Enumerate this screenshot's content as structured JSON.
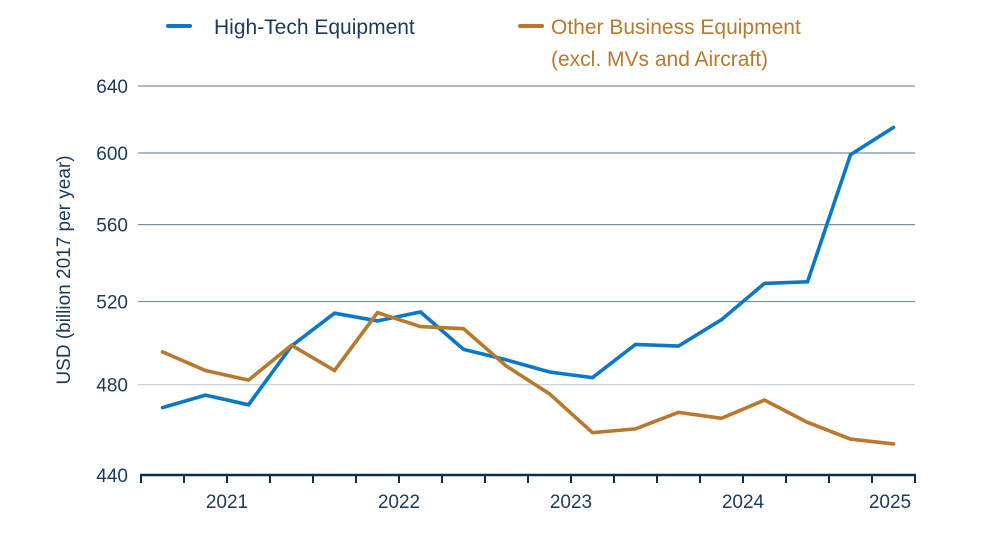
{
  "chart_data": {
    "type": "line",
    "title": "",
    "xlabel": "",
    "ylabel": "USD (billion 2017 per year)",
    "y_scale": "log",
    "ylim": [
      440,
      640
    ],
    "y_ticks": [
      "440",
      "480",
      "520",
      "560",
      "600",
      "640"
    ],
    "grid": "horizontal",
    "legend_position": "top",
    "x": [
      "2021-Q1",
      "2021-Q2",
      "2021-Q3",
      "2021-Q4",
      "2022-Q1",
      "2022-Q2",
      "2022-Q3",
      "2022-Q4",
      "2023-Q1",
      "2023-Q2",
      "2023-Q3",
      "2023-Q4",
      "2024-Q1",
      "2024-Q2",
      "2024-Q3",
      "2024-Q4",
      "2025-Q1",
      "2025-Q2"
    ],
    "x_tick_labels": [
      "2021",
      "2022",
      "2023",
      "2024",
      "2025"
    ],
    "series": [
      {
        "name": "High-Tech Equipment",
        "color": "#0a78c8",
        "values": [
          469.5,
          475.2,
          470.8,
          498.2,
          514.2,
          510.4,
          514.8,
          496.6,
          491.6,
          485.9,
          483.3,
          499.0,
          498.2,
          511.0,
          529.2,
          530.0,
          599.0,
          615.0
        ]
      },
      {
        "name": "Other Business Equipment",
        "name_line2": "(excl. MVs and Aircraft)",
        "color": "#b8792c",
        "values": [
          495.4,
          486.6,
          482.1,
          498.6,
          486.6,
          514.5,
          507.6,
          506.6,
          488.6,
          475.8,
          458.3,
          460.0,
          467.4,
          464.7,
          472.9,
          462.9,
          455.5,
          453.4
        ]
      }
    ]
  }
}
